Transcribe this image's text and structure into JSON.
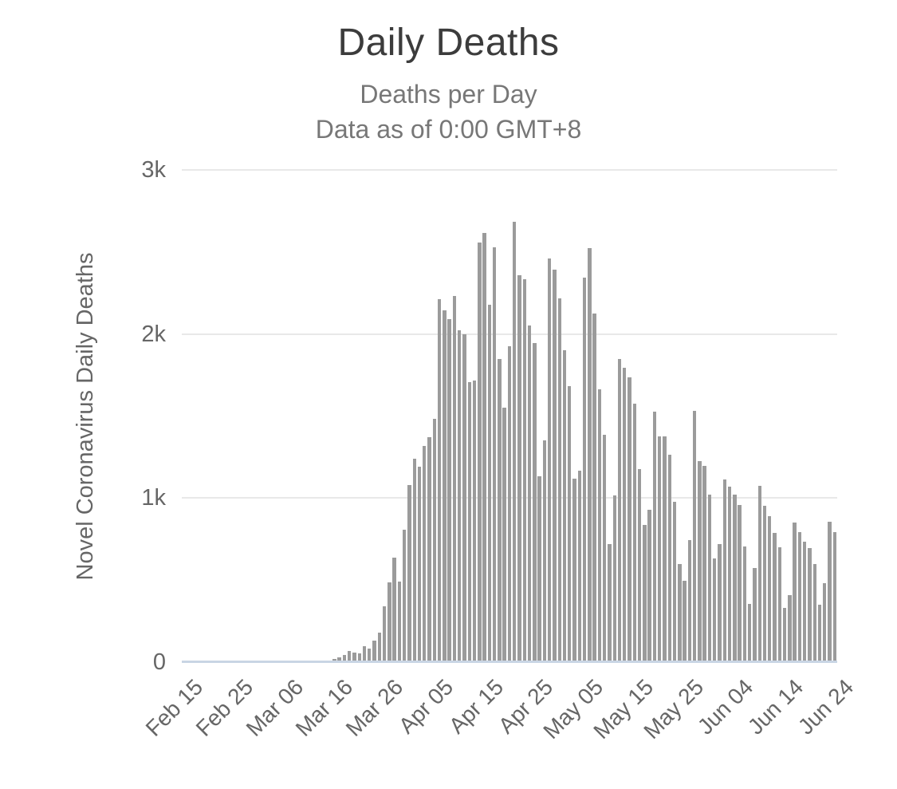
{
  "header": {
    "title": "Daily Deaths",
    "subtitle_line1": "Deaths per Day",
    "subtitle_line2": "Data as of 0:00 GMT+8"
  },
  "colors": {
    "bar": "#9b9b9b",
    "gridline": "#e8e8e8",
    "baseline": "#c9d5e4",
    "title_text": "#3c3c3c",
    "subtitle_text": "#777777",
    "axis_text": "#666666",
    "background": "#ffffff"
  },
  "chart_data": {
    "type": "bar",
    "title": "Daily Deaths",
    "subtitle": [
      "Deaths per Day",
      "Data as of 0:00 GMT+8"
    ],
    "xlabel": "",
    "ylabel": "Novel Coronavirus Daily Deaths",
    "ylim": [
      0,
      3000
    ],
    "grid": true,
    "legend": false,
    "ytick_values": [
      0,
      1000,
      2000,
      3000
    ],
    "ytick_labels": [
      "0",
      "1k",
      "2k",
      "3k"
    ],
    "xtick_day_indices": [
      0,
      10,
      20,
      30,
      40,
      50,
      60,
      70,
      80,
      90,
      100,
      110,
      120,
      130
    ],
    "xtick_labels": [
      "Feb 15",
      "Feb 25",
      "Mar 06",
      "Mar 16",
      "Mar 26",
      "Apr 05",
      "Apr 15",
      "Apr 25",
      "May 05",
      "May 15",
      "May 25",
      "Jun 04",
      "Jun 14",
      "Jun 24"
    ],
    "categories": [
      "Feb 15",
      "Feb 16",
      "Feb 17",
      "Feb 18",
      "Feb 19",
      "Feb 20",
      "Feb 21",
      "Feb 22",
      "Feb 23",
      "Feb 24",
      "Feb 25",
      "Feb 26",
      "Feb 27",
      "Feb 28",
      "Feb 29",
      "Mar 01",
      "Mar 02",
      "Mar 03",
      "Mar 04",
      "Mar 05",
      "Mar 06",
      "Mar 07",
      "Mar 08",
      "Mar 09",
      "Mar 10",
      "Mar 11",
      "Mar 12",
      "Mar 13",
      "Mar 14",
      "Mar 15",
      "Mar 16",
      "Mar 17",
      "Mar 18",
      "Mar 19",
      "Mar 20",
      "Mar 21",
      "Mar 22",
      "Mar 23",
      "Mar 24",
      "Mar 25",
      "Mar 26",
      "Mar 27",
      "Mar 28",
      "Mar 29",
      "Mar 30",
      "Mar 31",
      "Apr 01",
      "Apr 02",
      "Apr 03",
      "Apr 04",
      "Apr 05",
      "Apr 06",
      "Apr 07",
      "Apr 08",
      "Apr 09",
      "Apr 10",
      "Apr 11",
      "Apr 12",
      "Apr 13",
      "Apr 14",
      "Apr 15",
      "Apr 16",
      "Apr 17",
      "Apr 18",
      "Apr 19",
      "Apr 20",
      "Apr 21",
      "Apr 22",
      "Apr 23",
      "Apr 24",
      "Apr 25",
      "Apr 26",
      "Apr 27",
      "Apr 28",
      "Apr 29",
      "Apr 30",
      "May 01",
      "May 02",
      "May 03",
      "May 04",
      "May 05",
      "May 06",
      "May 07",
      "May 08",
      "May 09",
      "May 10",
      "May 11",
      "May 12",
      "May 13",
      "May 14",
      "May 15",
      "May 16",
      "May 17",
      "May 18",
      "May 19",
      "May 20",
      "May 21",
      "May 22",
      "May 23",
      "May 24",
      "May 25",
      "May 26",
      "May 27",
      "May 28",
      "May 29",
      "May 30",
      "May 31",
      "Jun 01",
      "Jun 02",
      "Jun 03",
      "Jun 04",
      "Jun 05",
      "Jun 06",
      "Jun 07",
      "Jun 08",
      "Jun 09",
      "Jun 10",
      "Jun 11",
      "Jun 12",
      "Jun 13",
      "Jun 14",
      "Jun 15",
      "Jun 16",
      "Jun 17",
      "Jun 18",
      "Jun 19",
      "Jun 20",
      "Jun 21",
      "Jun 22",
      "Jun 23",
      "Jun 24"
    ],
    "values": [
      0,
      0,
      0,
      0,
      0,
      0,
      0,
      0,
      0,
      0,
      0,
      0,
      0,
      0,
      1,
      1,
      4,
      3,
      2,
      1,
      3,
      4,
      3,
      4,
      4,
      8,
      3,
      8,
      10,
      12,
      20,
      30,
      45,
      70,
      60,
      55,
      95,
      85,
      130,
      180,
      340,
      485,
      635,
      490,
      805,
      1080,
      1240,
      1190,
      1320,
      1370,
      1485,
      2210,
      2145,
      2090,
      2230,
      2025,
      2000,
      1705,
      1715,
      2560,
      2615,
      2180,
      2530,
      1850,
      1550,
      1925,
      2685,
      2360,
      2335,
      2050,
      1945,
      1135,
      1350,
      2460,
      2390,
      2215,
      1900,
      1680,
      1120,
      1165,
      2345,
      2525,
      2125,
      1665,
      1385,
      720,
      1015,
      1850,
      1795,
      1735,
      1575,
      1175,
      835,
      930,
      1525,
      1375,
      1375,
      1265,
      975,
      600,
      495,
      745,
      1530,
      1225,
      1195,
      1020,
      630,
      720,
      1115,
      1070,
      1020,
      960,
      705,
      355,
      575,
      1075,
      955,
      890,
      790,
      700,
      330,
      410,
      850,
      795,
      735,
      695,
      600,
      350,
      480,
      855,
      795
    ]
  }
}
